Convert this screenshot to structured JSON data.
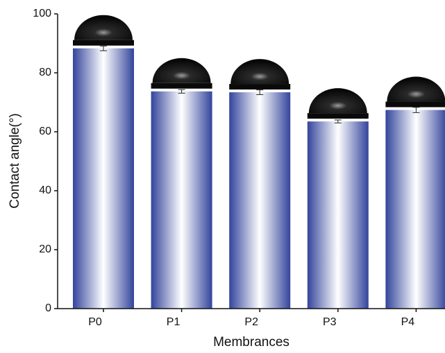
{
  "chart_data": {
    "type": "bar",
    "x_label": "Membrances",
    "y_label": "Contact angle(°)",
    "categories": [
      "P0",
      "P1",
      "P2",
      "P3",
      "P4"
    ],
    "values": [
      88.3,
      73.7,
      73.4,
      63.5,
      67.4
    ],
    "errors": [
      0.8,
      0.6,
      0.8,
      0.5,
      0.9
    ],
    "color": "#33449c",
    "ylim": [
      0,
      100
    ],
    "yticks": [
      0,
      20,
      40,
      60,
      80,
      100
    ],
    "grid": false
  }
}
